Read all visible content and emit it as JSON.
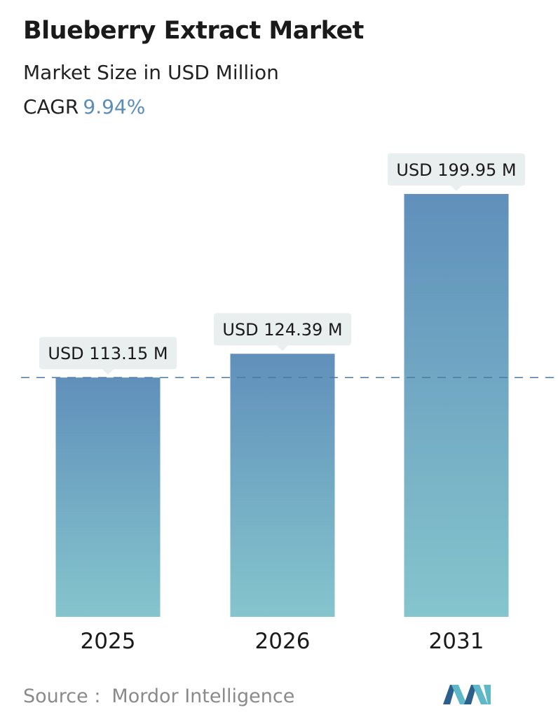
{
  "header": {
    "title": "Blueberry Extract Market",
    "subtitle": "Market Size in USD Million",
    "cagr_label": "CAGR",
    "cagr_value": "9.94%"
  },
  "footer": {
    "source_label": "Source :",
    "source_name": "Mordor Intelligence"
  },
  "colors": {
    "bar_top": "#6090bb",
    "bar_bottom": "#85c5cd",
    "label_bg": "#e9eeee",
    "dashed_line": "#4a7aa5",
    "cagr_accent": "#5b8db8",
    "logo_dark": "#2c5f8c",
    "logo_light": "#5fb8c8"
  },
  "chart_data": {
    "type": "bar",
    "categories": [
      "2025",
      "2026",
      "2031"
    ],
    "values": [
      113.15,
      124.39,
      199.95
    ],
    "value_labels": [
      "USD 113.15 M",
      "USD 124.39 M",
      "USD 199.95 M"
    ],
    "title": "Blueberry Extract Market",
    "subtitle": "Market Size in USD Million",
    "xlabel": "",
    "ylabel": "",
    "ylim": [
      0,
      199.95
    ],
    "reference_line_value": 113.15,
    "grid": false
  }
}
